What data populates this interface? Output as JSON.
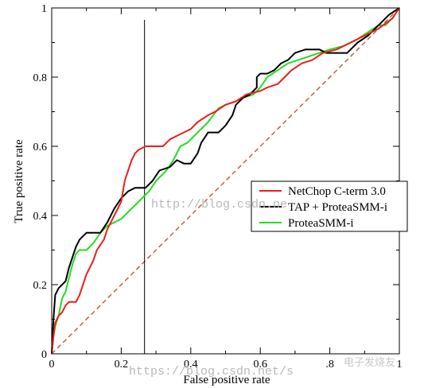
{
  "chart_data": {
    "type": "line",
    "title": "",
    "xlabel": "False positive rate",
    "ylabel": "True positive rate",
    "xlim": [
      0,
      1
    ],
    "ylim": [
      0,
      1
    ],
    "x_ticks": [
      0,
      0.2,
      0.4,
      0.6,
      0.8,
      1
    ],
    "x_tick_labels": [
      "0",
      "0.2",
      "0.4",
      "0.6",
      ".8",
      "1"
    ],
    "y_ticks": [
      0,
      0.2,
      0.4,
      0.6,
      0.8,
      1
    ],
    "y_tick_labels": [
      "0",
      "0.2",
      "0.4",
      "0.6",
      "0.8",
      "1"
    ],
    "grid": false,
    "legend_position": "center-right",
    "vertical_marker_x": 0.267,
    "series": [
      {
        "name": "NetChop C-term 3.0",
        "color": "#ee1c1c",
        "points": [
          [
            0,
            0
          ],
          [
            0.005,
            0.05
          ],
          [
            0.01,
            0.09
          ],
          [
            0.02,
            0.11
          ],
          [
            0.03,
            0.12
          ],
          [
            0.04,
            0.14
          ],
          [
            0.05,
            0.15
          ],
          [
            0.07,
            0.15
          ],
          [
            0.08,
            0.17
          ],
          [
            0.09,
            0.2
          ],
          [
            0.1,
            0.23
          ],
          [
            0.11,
            0.25
          ],
          [
            0.12,
            0.27
          ],
          [
            0.13,
            0.3
          ],
          [
            0.15,
            0.33
          ],
          [
            0.16,
            0.36
          ],
          [
            0.18,
            0.4
          ],
          [
            0.2,
            0.44
          ],
          [
            0.21,
            0.5
          ],
          [
            0.22,
            0.53
          ],
          [
            0.23,
            0.56
          ],
          [
            0.24,
            0.58
          ],
          [
            0.25,
            0.59
          ],
          [
            0.27,
            0.6
          ],
          [
            0.32,
            0.6
          ],
          [
            0.34,
            0.62
          ],
          [
            0.36,
            0.63
          ],
          [
            0.38,
            0.64
          ],
          [
            0.4,
            0.65
          ],
          [
            0.42,
            0.67
          ],
          [
            0.45,
            0.69
          ],
          [
            0.47,
            0.7
          ],
          [
            0.5,
            0.72
          ],
          [
            0.53,
            0.73
          ],
          [
            0.56,
            0.75
          ],
          [
            0.6,
            0.76
          ],
          [
            0.62,
            0.77
          ],
          [
            0.65,
            0.78
          ],
          [
            0.67,
            0.8
          ],
          [
            0.69,
            0.82
          ],
          [
            0.72,
            0.84
          ],
          [
            0.75,
            0.85
          ],
          [
            0.78,
            0.87
          ],
          [
            0.82,
            0.88
          ],
          [
            0.86,
            0.9
          ],
          [
            0.9,
            0.92
          ],
          [
            0.94,
            0.94
          ],
          [
            0.98,
            0.97
          ],
          [
            1,
            1
          ]
        ]
      },
      {
        "name": "TAP + ProteaSMM-i",
        "color": "#000000",
        "points": [
          [
            0,
            0
          ],
          [
            0.005,
            0.1
          ],
          [
            0.01,
            0.17
          ],
          [
            0.02,
            0.19
          ],
          [
            0.03,
            0.2
          ],
          [
            0.04,
            0.21
          ],
          [
            0.05,
            0.25
          ],
          [
            0.06,
            0.28
          ],
          [
            0.07,
            0.31
          ],
          [
            0.08,
            0.33
          ],
          [
            0.09,
            0.34
          ],
          [
            0.1,
            0.35
          ],
          [
            0.14,
            0.35
          ],
          [
            0.16,
            0.38
          ],
          [
            0.18,
            0.42
          ],
          [
            0.2,
            0.45
          ],
          [
            0.22,
            0.47
          ],
          [
            0.24,
            0.48
          ],
          [
            0.27,
            0.48
          ],
          [
            0.29,
            0.5
          ],
          [
            0.31,
            0.53
          ],
          [
            0.34,
            0.54
          ],
          [
            0.36,
            0.56
          ],
          [
            0.38,
            0.55
          ],
          [
            0.4,
            0.55
          ],
          [
            0.42,
            0.58
          ],
          [
            0.43,
            0.61
          ],
          [
            0.45,
            0.64
          ],
          [
            0.47,
            0.64
          ],
          [
            0.48,
            0.64
          ],
          [
            0.5,
            0.66
          ],
          [
            0.52,
            0.69
          ],
          [
            0.53,
            0.72
          ],
          [
            0.55,
            0.74
          ],
          [
            0.57,
            0.75
          ],
          [
            0.59,
            0.77
          ],
          [
            0.59,
            0.8
          ],
          [
            0.6,
            0.81
          ],
          [
            0.62,
            0.81
          ],
          [
            0.64,
            0.82
          ],
          [
            0.66,
            0.84
          ],
          [
            0.68,
            0.85
          ],
          [
            0.7,
            0.87
          ],
          [
            0.73,
            0.88
          ],
          [
            0.77,
            0.88
          ],
          [
            0.79,
            0.87
          ],
          [
            0.85,
            0.87
          ],
          [
            0.88,
            0.9
          ],
          [
            0.91,
            0.92
          ],
          [
            0.94,
            0.95
          ],
          [
            0.97,
            0.98
          ],
          [
            1,
            1
          ]
        ]
      },
      {
        "name": "ProteaSMM-i",
        "color": "#22dd22",
        "points": [
          [
            0,
            0
          ],
          [
            0.005,
            0.05
          ],
          [
            0.01,
            0.08
          ],
          [
            0.02,
            0.11
          ],
          [
            0.03,
            0.16
          ],
          [
            0.04,
            0.18
          ],
          [
            0.05,
            0.22
          ],
          [
            0.06,
            0.26
          ],
          [
            0.07,
            0.29
          ],
          [
            0.08,
            0.3
          ],
          [
            0.1,
            0.3
          ],
          [
            0.12,
            0.32
          ],
          [
            0.14,
            0.35
          ],
          [
            0.16,
            0.37
          ],
          [
            0.18,
            0.38
          ],
          [
            0.2,
            0.39
          ],
          [
            0.22,
            0.41
          ],
          [
            0.24,
            0.43
          ],
          [
            0.26,
            0.45
          ],
          [
            0.28,
            0.47
          ],
          [
            0.3,
            0.5
          ],
          [
            0.33,
            0.53
          ],
          [
            0.35,
            0.56
          ],
          [
            0.37,
            0.6
          ],
          [
            0.39,
            0.61
          ],
          [
            0.42,
            0.64
          ],
          [
            0.45,
            0.67
          ],
          [
            0.48,
            0.71
          ],
          [
            0.5,
            0.72
          ],
          [
            0.53,
            0.73
          ],
          [
            0.55,
            0.74
          ],
          [
            0.58,
            0.75
          ],
          [
            0.6,
            0.77
          ],
          [
            0.62,
            0.8
          ],
          [
            0.65,
            0.82
          ],
          [
            0.68,
            0.84
          ],
          [
            0.71,
            0.85
          ],
          [
            0.74,
            0.86
          ],
          [
            0.77,
            0.87
          ],
          [
            0.8,
            0.88
          ],
          [
            0.84,
            0.89
          ],
          [
            0.88,
            0.91
          ],
          [
            0.91,
            0.93
          ],
          [
            0.94,
            0.95
          ],
          [
            0.96,
            0.95
          ],
          [
            0.98,
            0.97
          ],
          [
            1,
            1
          ]
        ]
      }
    ],
    "reference_line": {
      "color": "#c06050",
      "style": "dashed",
      "points": [
        [
          0,
          0
        ],
        [
          1,
          1
        ]
      ]
    }
  },
  "watermarks": {
    "center_text": "http://blog.csdn.ne",
    "bottom_text": "https://blog.csdn.net/s",
    "brand_text": "电子发烧友"
  }
}
